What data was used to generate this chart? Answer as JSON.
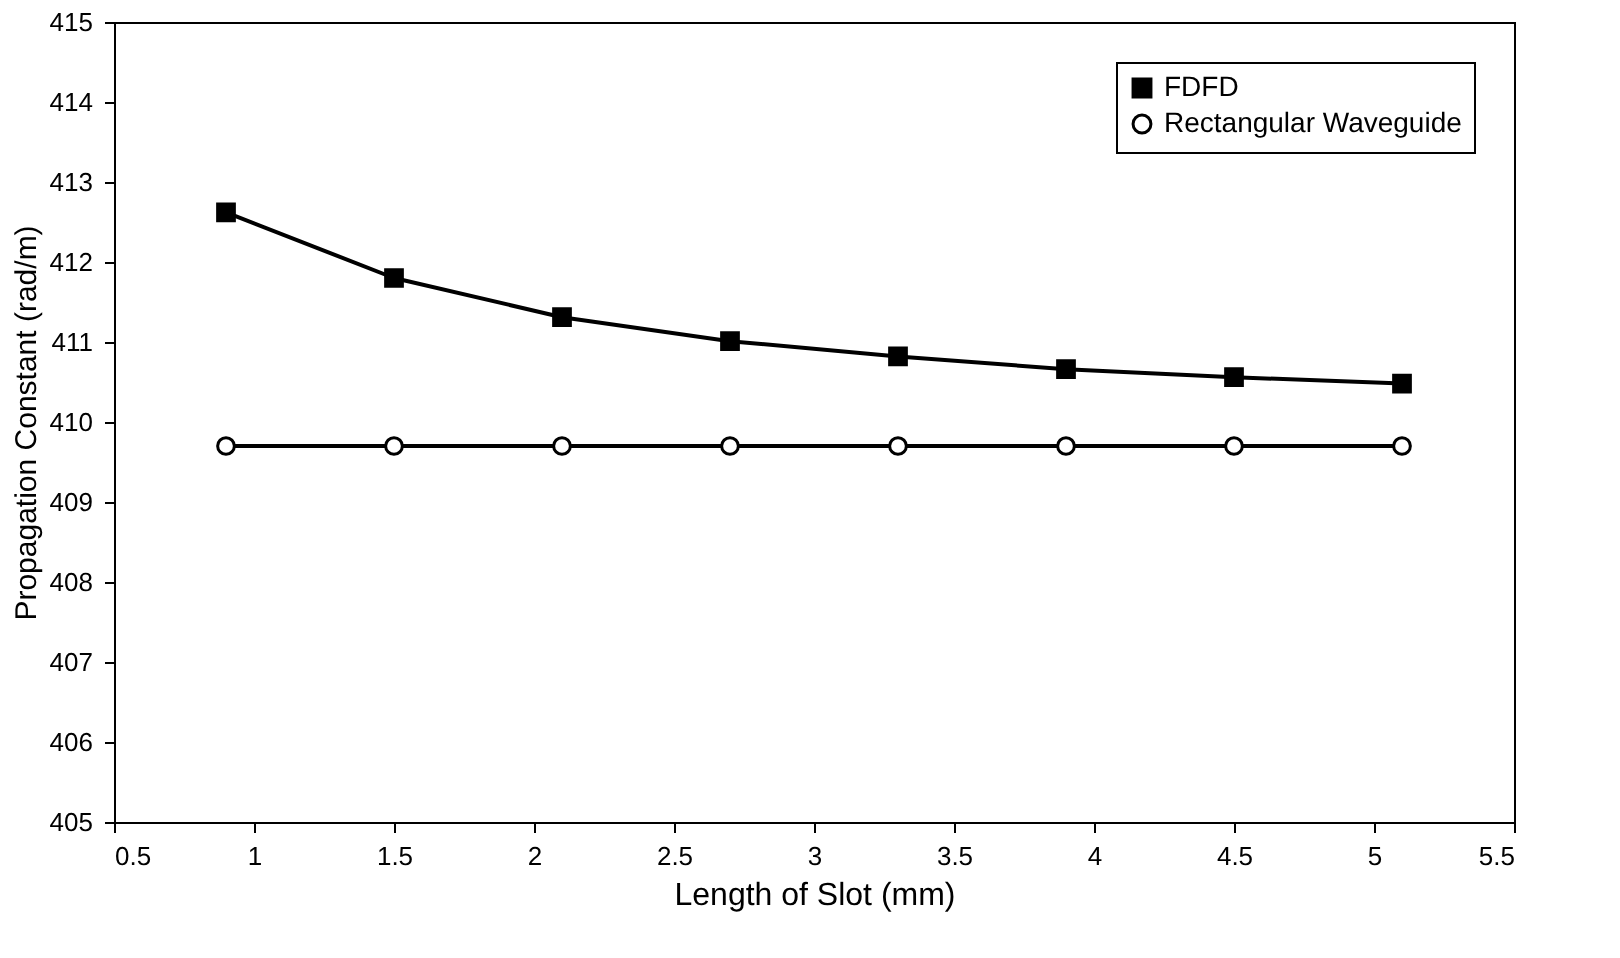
{
  "chart_data": {
    "type": "line",
    "xlabel": "Length of Slot (mm)",
    "ylabel": "Propagation Constant (rad/m)",
    "x": [
      0.9,
      1.5,
      2.1,
      2.7,
      3.3,
      3.9,
      4.5,
      5.1
    ],
    "series": [
      {
        "name": "FDFD",
        "color": "#000000",
        "marker": "square",
        "values": [
          412.62,
          411.8,
          411.31,
          411.01,
          410.82,
          410.66,
          410.56,
          410.48
        ]
      },
      {
        "name": "Rectangular Waveguide",
        "color": "#000000",
        "marker": "circle",
        "values": [
          409.7,
          409.7,
          409.7,
          409.7,
          409.7,
          409.7,
          409.7,
          409.7
        ]
      }
    ],
    "xlim": [
      0.5,
      5.5
    ],
    "xticks": [
      0.5,
      1,
      1.5,
      2,
      2.5,
      3,
      3.5,
      4,
      4.5,
      5,
      5.5
    ],
    "ylim": [
      405,
      415
    ],
    "yticks": [
      405,
      406,
      407,
      408,
      409,
      410,
      411,
      412,
      413,
      414,
      415
    ],
    "grid": false,
    "legend": "top right",
    "line_style": "solid"
  }
}
